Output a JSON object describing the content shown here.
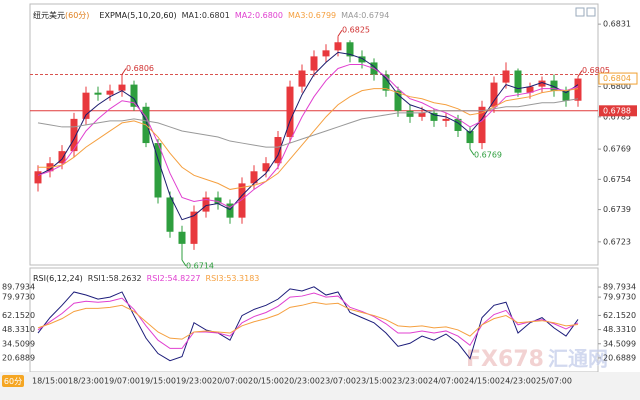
{
  "chart_data": [
    {
      "type": "candlestick",
      "title": "纽元美元",
      "subtitle": "(60分)",
      "indicator": "EXPMA(5,10,20,60)",
      "up_color": "#e8383d",
      "down_color": "#2e9e3e",
      "open": [
        0.6752,
        0.6758,
        0.6762,
        0.6768,
        0.6784,
        0.6797,
        0.6796,
        0.6798,
        0.6801,
        0.679,
        0.6772,
        0.6745,
        0.6728,
        0.6722,
        0.6738,
        0.6745,
        0.6742,
        0.6735,
        0.6752,
        0.6758,
        0.6762,
        0.6775,
        0.68,
        0.6808,
        0.6815,
        0.6818,
        0.6822,
        0.6815,
        0.6812,
        0.6806,
        0.6798,
        0.6788,
        0.6785,
        0.6787,
        0.6783,
        0.6784,
        0.6778,
        0.6772,
        0.679,
        0.6802,
        0.6808,
        0.6797,
        0.68,
        0.6803,
        0.6798,
        0.6793
      ],
      "high": [
        0.6761,
        0.6765,
        0.6771,
        0.6787,
        0.68,
        0.68,
        0.6801,
        0.6806,
        0.6803,
        0.6792,
        0.6774,
        0.6748,
        0.6731,
        0.6741,
        0.6748,
        0.6748,
        0.6744,
        0.6755,
        0.6761,
        0.6765,
        0.6778,
        0.6803,
        0.6811,
        0.6818,
        0.6821,
        0.6825,
        0.6823,
        0.6818,
        0.6814,
        0.6808,
        0.68,
        0.6791,
        0.679,
        0.6789,
        0.6787,
        0.6786,
        0.678,
        0.6793,
        0.6805,
        0.6812,
        0.6809,
        0.6802,
        0.6805,
        0.6806,
        0.68,
        0.6805
      ],
      "low": [
        0.6748,
        0.6755,
        0.6759,
        0.6765,
        0.6781,
        0.6793,
        0.6793,
        0.6795,
        0.6788,
        0.677,
        0.6742,
        0.6725,
        0.6714,
        0.6719,
        0.6735,
        0.6739,
        0.6732,
        0.6732,
        0.6749,
        0.6755,
        0.6759,
        0.6772,
        0.6797,
        0.6805,
        0.6812,
        0.6815,
        0.6812,
        0.6809,
        0.6803,
        0.6795,
        0.6785,
        0.6782,
        0.6783,
        0.678,
        0.678,
        0.6775,
        0.6769,
        0.6769,
        0.6787,
        0.6799,
        0.6795,
        0.6794,
        0.6797,
        0.6795,
        0.679,
        0.679
      ],
      "close": [
        0.6758,
        0.6762,
        0.6768,
        0.6784,
        0.6797,
        0.6796,
        0.6798,
        0.6801,
        0.679,
        0.6772,
        0.6745,
        0.6728,
        0.6722,
        0.6738,
        0.6745,
        0.6742,
        0.6735,
        0.6752,
        0.6758,
        0.6762,
        0.6775,
        0.68,
        0.6808,
        0.6815,
        0.6818,
        0.6822,
        0.6815,
        0.6812,
        0.6806,
        0.6798,
        0.6788,
        0.6785,
        0.6787,
        0.6783,
        0.6784,
        0.6778,
        0.6772,
        0.679,
        0.6802,
        0.6808,
        0.6797,
        0.68,
        0.6803,
        0.6798,
        0.6793,
        0.6804
      ],
      "series": [
        {
          "name": "MA1:0.6801",
          "color": "#1c1c6e",
          "values": [
            0.6756,
            0.6759,
            0.6764,
            0.6774,
            0.6786,
            0.6791,
            0.6795,
            0.6798,
            0.6794,
            0.6783,
            0.6764,
            0.6746,
            0.6734,
            0.6736,
            0.6741,
            0.6742,
            0.6739,
            0.6746,
            0.6752,
            0.6757,
            0.6766,
            0.6783,
            0.6796,
            0.6806,
            0.6812,
            0.6817,
            0.6816,
            0.6814,
            0.681,
            0.6804,
            0.6796,
            0.6791,
            0.6789,
            0.6786,
            0.6785,
            0.6782,
            0.6777,
            0.6784,
            0.6793,
            0.6801,
            0.6799,
            0.68,
            0.6802,
            0.68,
            0.6797,
            0.6801
          ]
        },
        {
          "name": "MA2:0.6800",
          "color": "#e040d0",
          "values": [
            0.6756,
            0.6758,
            0.6761,
            0.6769,
            0.6778,
            0.6784,
            0.6789,
            0.6793,
            0.6792,
            0.6785,
            0.6772,
            0.6757,
            0.6745,
            0.6743,
            0.6744,
            0.6743,
            0.674,
            0.6744,
            0.6749,
            0.6753,
            0.676,
            0.6773,
            0.6785,
            0.6795,
            0.6803,
            0.6809,
            0.6811,
            0.6811,
            0.6809,
            0.6805,
            0.6799,
            0.6794,
            0.6792,
            0.6789,
            0.6787,
            0.6784,
            0.678,
            0.6783,
            0.6789,
            0.6795,
            0.6796,
            0.6797,
            0.6799,
            0.6799,
            0.6798,
            0.68
          ]
        },
        {
          "name": "MA3:0.6799",
          "color": "#f5a040",
          "values": [
            0.676,
            0.676,
            0.6761,
            0.6765,
            0.677,
            0.6774,
            0.6778,
            0.6782,
            0.6783,
            0.6781,
            0.6775,
            0.6767,
            0.676,
            0.6756,
            0.6754,
            0.6752,
            0.6749,
            0.675,
            0.6751,
            0.6753,
            0.6757,
            0.6764,
            0.6771,
            0.6778,
            0.6785,
            0.6791,
            0.6795,
            0.6798,
            0.6799,
            0.6799,
            0.6797,
            0.6795,
            0.6794,
            0.6792,
            0.6791,
            0.6789,
            0.6786,
            0.6787,
            0.679,
            0.6793,
            0.6794,
            0.6795,
            0.6797,
            0.6798,
            0.6798,
            0.6799
          ]
        },
        {
          "name": "MA4:0.6794",
          "color": "#999999",
          "values": [
            0.6782,
            0.6781,
            0.678,
            0.678,
            0.6781,
            0.6782,
            0.6783,
            0.6783,
            0.6784,
            0.6783,
            0.6782,
            0.678,
            0.6778,
            0.6777,
            0.6776,
            0.6775,
            0.6773,
            0.6772,
            0.6771,
            0.677,
            0.677,
            0.6772,
            0.6774,
            0.6776,
            0.6778,
            0.678,
            0.6782,
            0.6784,
            0.6785,
            0.6786,
            0.6787,
            0.6787,
            0.6787,
            0.6788,
            0.6788,
            0.6788,
            0.6788,
            0.6788,
            0.6789,
            0.679,
            0.679,
            0.6791,
            0.6792,
            0.6792,
            0.6793,
            0.6794
          ]
        }
      ],
      "ylim": [
        0.6713,
        0.6839
      ],
      "yticks": [
        0.6831,
        {
          "value": 0.68,
          "label": "0.6800"
        },
        0.6785,
        0.6769,
        0.6754,
        0.6739,
        0.6723
      ],
      "annotations": [
        {
          "index": 7,
          "value": 0.6806,
          "color": "#d03030"
        },
        {
          "index": 25,
          "value": 0.6825,
          "color": "#d03030"
        },
        {
          "index": 12,
          "value": 0.6714,
          "color": "#2e9e3e"
        },
        {
          "index": 36,
          "value": 0.6769,
          "color": "#2e9e3e"
        },
        {
          "index": 45,
          "value": 0.6805,
          "color": "#d03030"
        }
      ],
      "levels": [
        {
          "value": 0.6806,
          "dashed": true,
          "boxed": false,
          "color": "#d9534f"
        },
        {
          "value": 0.6788,
          "dashed": false,
          "boxed": true,
          "color": "#e03a3a"
        }
      ],
      "last_price": {
        "value": 0.6804,
        "color": "#f0a030"
      }
    },
    {
      "type": "line",
      "indicator": "RSI(6,12,24)",
      "categories": [
        null,
        "18/15:00",
        null,
        null,
        "18/23:00",
        null,
        null,
        "19/07:00",
        null,
        null,
        "19/15:00",
        null,
        null,
        "19/23:00",
        null,
        null,
        "20/07:00",
        null,
        null,
        "20/15:00",
        null,
        null,
        "20/23:00",
        null,
        null,
        "23/07:00",
        null,
        null,
        "23/15:00",
        null,
        null,
        "23/23:00",
        null,
        null,
        "24/07:00",
        null,
        null,
        "24/15:00",
        null,
        null,
        "24/23:00",
        null,
        null,
        "25/07:00",
        null,
        null
      ],
      "series": [
        {
          "name": "RSI1:58.2632",
          "color": "#1c1c7a",
          "values": [
            45,
            60,
            72,
            85,
            82,
            78,
            80,
            85,
            62,
            40,
            25,
            18,
            22,
            55,
            48,
            45,
            38,
            62,
            68,
            72,
            78,
            88,
            86,
            90,
            82,
            85,
            65,
            60,
            55,
            45,
            32,
            35,
            42,
            38,
            44,
            35,
            20,
            60,
            72,
            75,
            45,
            55,
            60,
            50,
            42,
            58.26
          ]
        },
        {
          "name": "RSI2:54.8227",
          "color": "#e040d0",
          "values": [
            48,
            56,
            64,
            74,
            76,
            75,
            76,
            79,
            68,
            52,
            38,
            30,
            30,
            46,
            46,
            45,
            42,
            55,
            61,
            65,
            71,
            80,
            81,
            84,
            80,
            81,
            70,
            66,
            61,
            54,
            45,
            45,
            47,
            45,
            47,
            42,
            33,
            53,
            63,
            67,
            53,
            56,
            58,
            54,
            49,
            54.82
          ]
        },
        {
          "name": "RSI3:53.3183",
          "color": "#f5a040",
          "values": [
            50,
            54,
            59,
            66,
            69,
            69,
            70,
            72,
            66,
            56,
            46,
            40,
            39,
            46,
            47,
            46,
            45,
            52,
            56,
            59,
            63,
            70,
            72,
            75,
            73,
            74,
            68,
            65,
            62,
            58,
            52,
            51,
            52,
            50,
            51,
            48,
            42,
            53,
            59,
            62,
            55,
            56,
            57,
            55,
            52,
            53.32
          ]
        }
      ],
      "ylim": [
        7,
        106.4
      ],
      "yticks": [
        89.7934,
        {
          "value": 79.973,
          "label": "79.9730"
        },
        {
          "value": 62.152,
          "label": "62.1520"
        },
        {
          "value": 48.331,
          "label": "48.3310"
        },
        34.5099,
        20.6889
      ]
    }
  ],
  "period_badge": "60分",
  "watermark": [
    "FX678",
    "汇通网"
  ]
}
